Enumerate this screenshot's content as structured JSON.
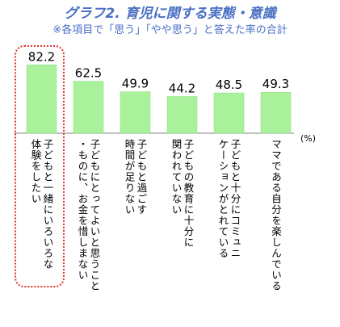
{
  "chart_data": {
    "type": "bar",
    "title": "グラフ2. 育児に関する実態・意識",
    "subtitle": "※各項目で「思う」「やや思う」と答えた率の合計",
    "unit": "(%)",
    "categories": [
      "子どもと一緒にいろいろな\n体験をしたい",
      "子どもにとってよいと思うこと\n・ものに、お金を惜しまない",
      "子どもと過ごす\n時間が足りない",
      "子どもの教育に十分に\n関われていない",
      "子どもと十分にコミュニ\nケーションがとれている",
      "ママである自分を楽しんでいる"
    ],
    "values": [
      82.2,
      62.5,
      49.9,
      44.2,
      48.5,
      49.3
    ],
    "value_labels": [
      "82.2",
      "62.5",
      "49.9",
      "44.2",
      "48.5",
      "49.3"
    ],
    "ylim": [
      0,
      100
    ],
    "bar_color": "#a9f29b",
    "bar_border_color": "#8fd97f",
    "highlight_color": "#e0312b",
    "highlighted_index": 0
  }
}
